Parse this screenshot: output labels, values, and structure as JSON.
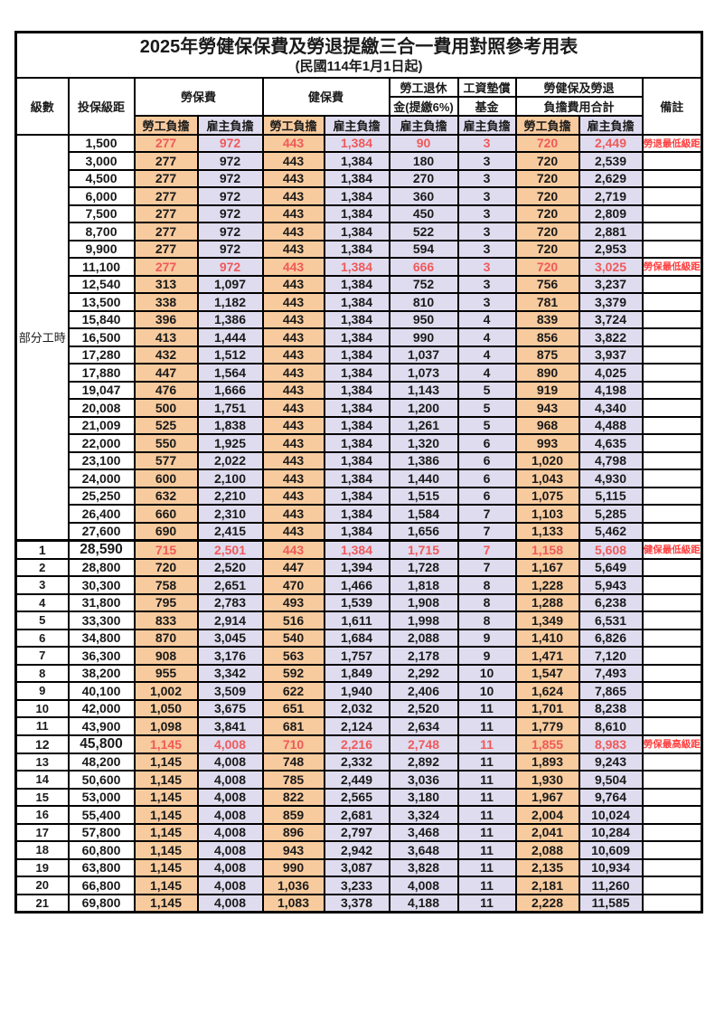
{
  "title": "2025年勞健保保費及勞退提繳三合一費用對照參考用表",
  "subtitle": "(民國114年1月1日起)",
  "header": {
    "level": "級數",
    "bracket": "投保級距",
    "labor_insurance": "勞保費",
    "health_insurance": "健保費",
    "pension_line1": "勞工退休",
    "pension_line2": "金(提繳6%)",
    "wage_fund_line1": "工資墊償",
    "wage_fund_line2": "基金",
    "total_line1": "勞健保及勞退",
    "total_line2": "負擔費用合計",
    "remarks": "備註",
    "employee_share": "勞工負擔",
    "employer_share": "雇主負擔"
  },
  "part_time_label": "部分工時",
  "part_time_rowspan": 23,
  "colors": {
    "employee_bg": "#f8cb9e",
    "employer_bg": "#e0dcef",
    "special_value_red": "#ef5a5a",
    "note_red": "#ff3d3d",
    "grid": "#000000"
  },
  "rows": [
    {
      "level": "",
      "bracket": "1,500",
      "li_emp": "277",
      "li_er": "972",
      "hi_emp": "443",
      "hi_er": "1,384",
      "pension": "90",
      "fund": "3",
      "tot_emp": "720",
      "tot_er": "2,449",
      "note": "勞退最低級距",
      "special": true
    },
    {
      "level": "",
      "bracket": "3,000",
      "li_emp": "277",
      "li_er": "972",
      "hi_emp": "443",
      "hi_er": "1,384",
      "pension": "180",
      "fund": "3",
      "tot_emp": "720",
      "tot_er": "2,539",
      "note": ""
    },
    {
      "level": "",
      "bracket": "4,500",
      "li_emp": "277",
      "li_er": "972",
      "hi_emp": "443",
      "hi_er": "1,384",
      "pension": "270",
      "fund": "3",
      "tot_emp": "720",
      "tot_er": "2,629",
      "note": ""
    },
    {
      "level": "",
      "bracket": "6,000",
      "li_emp": "277",
      "li_er": "972",
      "hi_emp": "443",
      "hi_er": "1,384",
      "pension": "360",
      "fund": "3",
      "tot_emp": "720",
      "tot_er": "2,719",
      "note": ""
    },
    {
      "level": "",
      "bracket": "7,500",
      "li_emp": "277",
      "li_er": "972",
      "hi_emp": "443",
      "hi_er": "1,384",
      "pension": "450",
      "fund": "3",
      "tot_emp": "720",
      "tot_er": "2,809",
      "note": ""
    },
    {
      "level": "",
      "bracket": "8,700",
      "li_emp": "277",
      "li_er": "972",
      "hi_emp": "443",
      "hi_er": "1,384",
      "pension": "522",
      "fund": "3",
      "tot_emp": "720",
      "tot_er": "2,881",
      "note": ""
    },
    {
      "level": "",
      "bracket": "9,900",
      "li_emp": "277",
      "li_er": "972",
      "hi_emp": "443",
      "hi_er": "1,384",
      "pension": "594",
      "fund": "3",
      "tot_emp": "720",
      "tot_er": "2,953",
      "note": ""
    },
    {
      "level": "",
      "bracket": "11,100",
      "li_emp": "277",
      "li_er": "972",
      "hi_emp": "443",
      "hi_er": "1,384",
      "pension": "666",
      "fund": "3",
      "tot_emp": "720",
      "tot_er": "3,025",
      "note": "勞保最低級距",
      "special": true
    },
    {
      "level": "",
      "bracket": "12,540",
      "li_emp": "313",
      "li_er": "1,097",
      "hi_emp": "443",
      "hi_er": "1,384",
      "pension": "752",
      "fund": "3",
      "tot_emp": "756",
      "tot_er": "3,237",
      "note": ""
    },
    {
      "level": "",
      "bracket": "13,500",
      "li_emp": "338",
      "li_er": "1,182",
      "hi_emp": "443",
      "hi_er": "1,384",
      "pension": "810",
      "fund": "3",
      "tot_emp": "781",
      "tot_er": "3,379",
      "note": ""
    },
    {
      "level": "",
      "bracket": "15,840",
      "li_emp": "396",
      "li_er": "1,386",
      "hi_emp": "443",
      "hi_er": "1,384",
      "pension": "950",
      "fund": "4",
      "tot_emp": "839",
      "tot_er": "3,724",
      "note": ""
    },
    {
      "level": "",
      "bracket": "16,500",
      "li_emp": "413",
      "li_er": "1,444",
      "hi_emp": "443",
      "hi_er": "1,384",
      "pension": "990",
      "fund": "4",
      "tot_emp": "856",
      "tot_er": "3,822",
      "note": ""
    },
    {
      "level": "",
      "bracket": "17,280",
      "li_emp": "432",
      "li_er": "1,512",
      "hi_emp": "443",
      "hi_er": "1,384",
      "pension": "1,037",
      "fund": "4",
      "tot_emp": "875",
      "tot_er": "3,937",
      "note": ""
    },
    {
      "level": "",
      "bracket": "17,880",
      "li_emp": "447",
      "li_er": "1,564",
      "hi_emp": "443",
      "hi_er": "1,384",
      "pension": "1,073",
      "fund": "4",
      "tot_emp": "890",
      "tot_er": "4,025",
      "note": ""
    },
    {
      "level": "",
      "bracket": "19,047",
      "li_emp": "476",
      "li_er": "1,666",
      "hi_emp": "443",
      "hi_er": "1,384",
      "pension": "1,143",
      "fund": "5",
      "tot_emp": "919",
      "tot_er": "4,198",
      "note": ""
    },
    {
      "level": "",
      "bracket": "20,008",
      "li_emp": "500",
      "li_er": "1,751",
      "hi_emp": "443",
      "hi_er": "1,384",
      "pension": "1,200",
      "fund": "5",
      "tot_emp": "943",
      "tot_er": "4,340",
      "note": ""
    },
    {
      "level": "",
      "bracket": "21,009",
      "li_emp": "525",
      "li_er": "1,838",
      "hi_emp": "443",
      "hi_er": "1,384",
      "pension": "1,261",
      "fund": "5",
      "tot_emp": "968",
      "tot_er": "4,488",
      "note": ""
    },
    {
      "level": "",
      "bracket": "22,000",
      "li_emp": "550",
      "li_er": "1,925",
      "hi_emp": "443",
      "hi_er": "1,384",
      "pension": "1,320",
      "fund": "6",
      "tot_emp": "993",
      "tot_er": "4,635",
      "note": ""
    },
    {
      "level": "",
      "bracket": "23,100",
      "li_emp": "577",
      "li_er": "2,022",
      "hi_emp": "443",
      "hi_er": "1,384",
      "pension": "1,386",
      "fund": "6",
      "tot_emp": "1,020",
      "tot_er": "4,798",
      "note": ""
    },
    {
      "level": "",
      "bracket": "24,000",
      "li_emp": "600",
      "li_er": "2,100",
      "hi_emp": "443",
      "hi_er": "1,384",
      "pension": "1,440",
      "fund": "6",
      "tot_emp": "1,043",
      "tot_er": "4,930",
      "note": ""
    },
    {
      "level": "",
      "bracket": "25,250",
      "li_emp": "632",
      "li_er": "2,210",
      "hi_emp": "443",
      "hi_er": "1,384",
      "pension": "1,515",
      "fund": "6",
      "tot_emp": "1,075",
      "tot_er": "5,115",
      "note": ""
    },
    {
      "level": "",
      "bracket": "26,400",
      "li_emp": "660",
      "li_er": "2,310",
      "hi_emp": "443",
      "hi_er": "1,384",
      "pension": "1,584",
      "fund": "7",
      "tot_emp": "1,103",
      "tot_er": "5,285",
      "note": ""
    },
    {
      "level": "",
      "bracket": "27,600",
      "li_emp": "690",
      "li_er": "2,415",
      "hi_emp": "443",
      "hi_er": "1,384",
      "pension": "1,656",
      "fund": "7",
      "tot_emp": "1,133",
      "tot_er": "5,462",
      "note": ""
    },
    {
      "level": "1",
      "bracket": "28,590",
      "li_emp": "715",
      "li_er": "2,501",
      "hi_emp": "443",
      "hi_er": "1,384",
      "pension": "1,715",
      "fund": "7",
      "tot_emp": "1,158",
      "tot_er": "5,608",
      "note": "健保最低級距",
      "special": true,
      "emphasis": true,
      "section_start": true
    },
    {
      "level": "2",
      "bracket": "28,800",
      "li_emp": "720",
      "li_er": "2,520",
      "hi_emp": "447",
      "hi_er": "1,394",
      "pension": "1,728",
      "fund": "7",
      "tot_emp": "1,167",
      "tot_er": "5,649",
      "note": ""
    },
    {
      "level": "3",
      "bracket": "30,300",
      "li_emp": "758",
      "li_er": "2,651",
      "hi_emp": "470",
      "hi_er": "1,466",
      "pension": "1,818",
      "fund": "8",
      "tot_emp": "1,228",
      "tot_er": "5,943",
      "note": ""
    },
    {
      "level": "4",
      "bracket": "31,800",
      "li_emp": "795",
      "li_er": "2,783",
      "hi_emp": "493",
      "hi_er": "1,539",
      "pension": "1,908",
      "fund": "8",
      "tot_emp": "1,288",
      "tot_er": "6,238",
      "note": ""
    },
    {
      "level": "5",
      "bracket": "33,300",
      "li_emp": "833",
      "li_er": "2,914",
      "hi_emp": "516",
      "hi_er": "1,611",
      "pension": "1,998",
      "fund": "8",
      "tot_emp": "1,349",
      "tot_er": "6,531",
      "note": ""
    },
    {
      "level": "6",
      "bracket": "34,800",
      "li_emp": "870",
      "li_er": "3,045",
      "hi_emp": "540",
      "hi_er": "1,684",
      "pension": "2,088",
      "fund": "9",
      "tot_emp": "1,410",
      "tot_er": "6,826",
      "note": ""
    },
    {
      "level": "7",
      "bracket": "36,300",
      "li_emp": "908",
      "li_er": "3,176",
      "hi_emp": "563",
      "hi_er": "1,757",
      "pension": "2,178",
      "fund": "9",
      "tot_emp": "1,471",
      "tot_er": "7,120",
      "note": ""
    },
    {
      "level": "8",
      "bracket": "38,200",
      "li_emp": "955",
      "li_er": "3,342",
      "hi_emp": "592",
      "hi_er": "1,849",
      "pension": "2,292",
      "fund": "10",
      "tot_emp": "1,547",
      "tot_er": "7,493",
      "note": ""
    },
    {
      "level": "9",
      "bracket": "40,100",
      "li_emp": "1,002",
      "li_er": "3,509",
      "hi_emp": "622",
      "hi_er": "1,940",
      "pension": "2,406",
      "fund": "10",
      "tot_emp": "1,624",
      "tot_er": "7,865",
      "note": ""
    },
    {
      "level": "10",
      "bracket": "42,000",
      "li_emp": "1,050",
      "li_er": "3,675",
      "hi_emp": "651",
      "hi_er": "2,032",
      "pension": "2,520",
      "fund": "11",
      "tot_emp": "1,701",
      "tot_er": "8,238",
      "note": ""
    },
    {
      "level": "11",
      "bracket": "43,900",
      "li_emp": "1,098",
      "li_er": "3,841",
      "hi_emp": "681",
      "hi_er": "2,124",
      "pension": "2,634",
      "fund": "11",
      "tot_emp": "1,779",
      "tot_er": "8,610",
      "note": ""
    },
    {
      "level": "12",
      "bracket": "45,800",
      "li_emp": "1,145",
      "li_er": "4,008",
      "hi_emp": "710",
      "hi_er": "2,216",
      "pension": "2,748",
      "fund": "11",
      "tot_emp": "1,855",
      "tot_er": "8,983",
      "note": "勞保最高級距",
      "special": true,
      "emphasis": true
    },
    {
      "level": "13",
      "bracket": "48,200",
      "li_emp": "1,145",
      "li_er": "4,008",
      "hi_emp": "748",
      "hi_er": "2,332",
      "pension": "2,892",
      "fund": "11",
      "tot_emp": "1,893",
      "tot_er": "9,243",
      "note": ""
    },
    {
      "level": "14",
      "bracket": "50,600",
      "li_emp": "1,145",
      "li_er": "4,008",
      "hi_emp": "785",
      "hi_er": "2,449",
      "pension": "3,036",
      "fund": "11",
      "tot_emp": "1,930",
      "tot_er": "9,504",
      "note": ""
    },
    {
      "level": "15",
      "bracket": "53,000",
      "li_emp": "1,145",
      "li_er": "4,008",
      "hi_emp": "822",
      "hi_er": "2,565",
      "pension": "3,180",
      "fund": "11",
      "tot_emp": "1,967",
      "tot_er": "9,764",
      "note": ""
    },
    {
      "level": "16",
      "bracket": "55,400",
      "li_emp": "1,145",
      "li_er": "4,008",
      "hi_emp": "859",
      "hi_er": "2,681",
      "pension": "3,324",
      "fund": "11",
      "tot_emp": "2,004",
      "tot_er": "10,024",
      "note": ""
    },
    {
      "level": "17",
      "bracket": "57,800",
      "li_emp": "1,145",
      "li_er": "4,008",
      "hi_emp": "896",
      "hi_er": "2,797",
      "pension": "3,468",
      "fund": "11",
      "tot_emp": "2,041",
      "tot_er": "10,284",
      "note": ""
    },
    {
      "level": "18",
      "bracket": "60,800",
      "li_emp": "1,145",
      "li_er": "4,008",
      "hi_emp": "943",
      "hi_er": "2,942",
      "pension": "3,648",
      "fund": "11",
      "tot_emp": "2,088",
      "tot_er": "10,609",
      "note": ""
    },
    {
      "level": "19",
      "bracket": "63,800",
      "li_emp": "1,145",
      "li_er": "4,008",
      "hi_emp": "990",
      "hi_er": "3,087",
      "pension": "3,828",
      "fund": "11",
      "tot_emp": "2,135",
      "tot_er": "10,934",
      "note": ""
    },
    {
      "level": "20",
      "bracket": "66,800",
      "li_emp": "1,145",
      "li_er": "4,008",
      "hi_emp": "1,036",
      "hi_er": "3,233",
      "pension": "4,008",
      "fund": "11",
      "tot_emp": "2,181",
      "tot_er": "11,260",
      "note": ""
    },
    {
      "level": "21",
      "bracket": "69,800",
      "li_emp": "1,145",
      "li_er": "4,008",
      "hi_emp": "1,083",
      "hi_er": "3,378",
      "pension": "4,188",
      "fund": "11",
      "tot_emp": "2,228",
      "tot_er": "11,585",
      "note": ""
    }
  ]
}
